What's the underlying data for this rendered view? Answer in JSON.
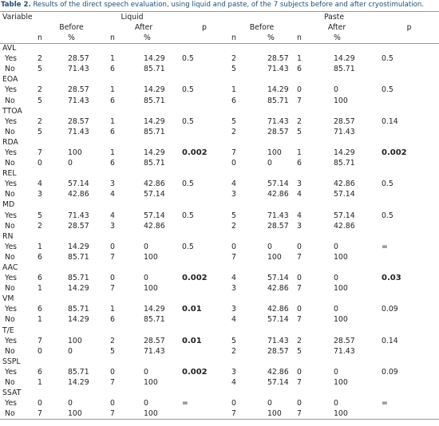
{
  "table": {
    "caption_label": "Table 2.",
    "caption": "Results of the direct speech evaluation, using liquid and paste, of the 7 subjects before and after cryostimulation.",
    "header": {
      "variable": "Variable",
      "liquid": "Liquid",
      "paste": "Paste",
      "before": [
        "Before",
        "Before"
      ],
      "after": [
        "After",
        "After"
      ],
      "p": [
        "p",
        "p"
      ],
      "n": [
        "n",
        "n",
        "n",
        "n"
      ],
      "pct": [
        "%",
        "%",
        "%",
        "%"
      ]
    },
    "groups": [
      {
        "name": "AVL",
        "rows": [
          {
            "label": "Yes",
            "cells": [
              "2",
              "28.57",
              "1",
              "14.29",
              "0.5",
              "2",
              "28.57",
              "1",
              "14.29",
              "0.5"
            ]
          },
          {
            "label": "No",
            "cells": [
              "5",
              "71.43",
              "6",
              "85.71",
              "5",
              "71.43",
              "6",
              "85.71"
            ]
          }
        ]
      },
      {
        "name": "EOA",
        "rows": [
          {
            "label": "Yes",
            "cells": [
              "2",
              "28.57",
              "1",
              "14.29",
              "0.5",
              "1",
              "14.29",
              "0",
              "0",
              "0.5"
            ]
          },
          {
            "label": "No",
            "cells": [
              "5",
              "71.43",
              "6",
              "85.71",
              "6",
              "85.71",
              "7",
              "100"
            ]
          }
        ]
      },
      {
        "name": "TTOA",
        "rows": [
          {
            "label": "Yes",
            "cells": [
              "2",
              "28.57",
              "1",
              "14.29",
              "0.5",
              "5",
              "71.43",
              "2",
              "28.57",
              "0.14"
            ]
          },
          {
            "label": "No",
            "cells": [
              "5",
              "71.43",
              "6",
              "85.71",
              "2",
              "28.57",
              "5",
              "71.43"
            ]
          }
        ]
      },
      {
        "name": "RDA",
        "rows": [
          {
            "label": "Yes",
            "cells": [
              "7",
              "100",
              "1",
              "14.29",
              "0.002",
              "7",
              "100",
              "1",
              "14.29",
              "0.002"
            ]
          },
          {
            "label": "No",
            "cells": [
              "0",
              "0",
              "6",
              "85.71",
              "0",
              "0",
              "6",
              "85.71"
            ]
          }
        ]
      },
      {
        "name": "REL",
        "rows": [
          {
            "label": "Yes",
            "cells": [
              "4",
              "57.14",
              "3",
              "42.86",
              "0.5",
              "4",
              "57.14",
              "3",
              "42.86",
              "0.5"
            ]
          },
          {
            "label": "No",
            "cells": [
              "3",
              "42.86",
              "4",
              "57.14",
              "3",
              "42.86",
              "4",
              "57.14"
            ]
          }
        ]
      },
      {
        "name": "MD",
        "rows": [
          {
            "label": "Yes",
            "cells": [
              "5",
              "71.43",
              "4",
              "57.14",
              "0.5",
              "5",
              "71.43",
              "4",
              "57.14",
              "0.5"
            ]
          },
          {
            "label": "No",
            "cells": [
              "2",
              "28.57",
              "3",
              "42.86",
              "2",
              "28.57",
              "3",
              "42.86"
            ]
          }
        ]
      },
      {
        "name": "RN",
        "rows": [
          {
            "label": "Yes",
            "cells": [
              "1",
              "14.29",
              "0",
              "0",
              "0.5",
              "0",
              "0",
              "0",
              "0",
              "="
            ]
          },
          {
            "label": "No",
            "cells": [
              "6",
              "85.71",
              "7",
              "100",
              "7",
              "100",
              "7",
              "100"
            ]
          }
        ]
      },
      {
        "name": "AAC",
        "rows": [
          {
            "label": "Yes",
            "cells": [
              "6",
              "85.71",
              "0",
              "0",
              "0.002",
              "4",
              "57.14",
              "0",
              "0",
              "0.03"
            ]
          },
          {
            "label": "No",
            "cells": [
              "1",
              "14.29",
              "7",
              "100",
              "3",
              "42.86",
              "7",
              "100"
            ]
          }
        ]
      },
      {
        "name": "VM",
        "rows": [
          {
            "label": "Yes",
            "cells": [
              "6",
              "85.71",
              "1",
              "14.29",
              "0.01",
              "3",
              "42.86",
              "0",
              "0",
              "0.09"
            ]
          },
          {
            "label": "No",
            "cells": [
              "1",
              "14.29",
              "6",
              "85.71",
              "4",
              "57.14",
              "7",
              "100"
            ]
          }
        ]
      },
      {
        "name": "T/E",
        "rows": [
          {
            "label": "Yes",
            "cells": [
              "7",
              "100",
              "2",
              "28.57",
              "0.01",
              "5",
              "71.43",
              "2",
              "28.57",
              "0.14"
            ]
          },
          {
            "label": "No",
            "cells": [
              "0",
              "0",
              "5",
              "71.43",
              "2",
              "28.57",
              "5",
              "71.43"
            ]
          }
        ]
      },
      {
        "name": "SSPL",
        "rows": [
          {
            "label": "Yes",
            "cells": [
              "6",
              "85.71",
              "0",
              "0",
              "0.002",
              "3",
              "42.86",
              "0",
              "0",
              "0.09"
            ]
          },
          {
            "label": "No",
            "cells": [
              "1",
              "14.29",
              "7",
              "100",
              "4",
              "57.14",
              "7",
              "100"
            ]
          }
        ]
      },
      {
        "name": "SSAT",
        "rows": [
          {
            "label": "Yes",
            "cells": [
              "0",
              "0",
              "0",
              "0",
              "=",
              "0",
              "0",
              "0",
              "0",
              "="
            ]
          },
          {
            "label": "No",
            "cells": [
              "7",
              "100",
              "7",
              "100",
              "7",
              "100",
              "7",
              "100"
            ]
          }
        ]
      }
    ]
  }
}
